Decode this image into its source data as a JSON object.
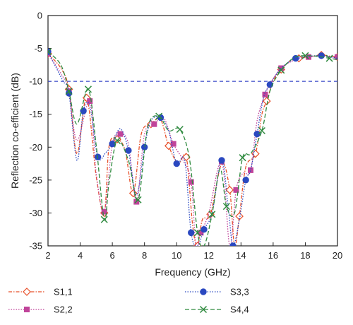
{
  "chart_data": {
    "type": "line",
    "title": "",
    "xlabel": "Frequency (GHz)",
    "ylabel": "Reflection co-efficient (dB)",
    "xlim": [
      2,
      20
    ],
    "ylim": [
      -35,
      0
    ],
    "xticks": [
      2,
      4,
      6,
      8,
      10,
      12,
      14,
      16,
      18,
      20
    ],
    "yticks": [
      0,
      -5,
      -10,
      -15,
      -20,
      -25,
      -30,
      -35
    ],
    "grid": false,
    "legend_position": "below-plot",
    "reference_line": {
      "y": -10,
      "color": "#3a48c8",
      "style": "dashed"
    },
    "series": [
      {
        "name": "S1,1",
        "color": "#e8502a",
        "marker": "diamond-open",
        "line_style": "dash-dot",
        "x": [
          2,
          2.8,
          3.3,
          3.8,
          4.4,
          5.0,
          5.5,
          5.8,
          6.3,
          6.8,
          7.3,
          7.8,
          8.4,
          9.0,
          9.5,
          10.1,
          10.6,
          11.0,
          11.3,
          11.6,
          12.1,
          12.8,
          13.3,
          13.6,
          13.9,
          14.3,
          14.9,
          15.3,
          15.6,
          16.0,
          16.5,
          17.0,
          17.6,
          18.4,
          19.0,
          19.6,
          20
        ],
        "y": [
          -5.8,
          -8.0,
          -11.2,
          -21.0,
          -12.5,
          -24.5,
          -30.0,
          -19.8,
          -18.8,
          -20.5,
          -27.0,
          -18.0,
          -16.5,
          -15.8,
          -19.8,
          -22.5,
          -21.5,
          -32.0,
          -35.0,
          -31.0,
          -30.2,
          -22.5,
          -26.5,
          -35.0,
          -30.5,
          -23.0,
          -21.0,
          -15.0,
          -13.0,
          -10.0,
          -8.2,
          -7.0,
          -6.5,
          -6.2,
          -6.0,
          -6.2,
          -6.3
        ]
      },
      {
        "name": "S2,2",
        "color": "#c0449a",
        "marker": "square",
        "line_style": "dotted",
        "x": [
          2,
          2.9,
          3.3,
          3.8,
          4.6,
          5.0,
          5.5,
          6.0,
          6.5,
          7.0,
          7.5,
          8.0,
          8.6,
          9.2,
          9.8,
          10.4,
          10.9,
          11.2,
          11.5,
          12.0,
          12.8,
          13.3,
          13.7,
          14.1,
          14.6,
          15.0,
          15.5,
          15.9,
          16.5,
          17.3,
          18.2,
          19.0,
          20
        ],
        "y": [
          -5.8,
          -9.2,
          -11.5,
          -19.0,
          -13.0,
          -24.0,
          -29.8,
          -19.5,
          -18.0,
          -19.5,
          -28.3,
          -18.0,
          -16.5,
          -15.6,
          -19.5,
          -22.0,
          -25.3,
          -35.0,
          -33.0,
          -30.0,
          -22.2,
          -35.0,
          -26.5,
          -24.0,
          -23.5,
          -16.0,
          -12.0,
          -10.0,
          -8.0,
          -6.8,
          -6.3,
          -6.2,
          -6.3
        ]
      },
      {
        "name": "S3,3",
        "color": "#2a48c0",
        "marker": "circle",
        "line_style": "dotted",
        "x": [
          2,
          2.9,
          3.3,
          3.8,
          4.2,
          4.6,
          5.1,
          5.6,
          6.0,
          6.5,
          7.0,
          7.5,
          8.0,
          8.4,
          9.0,
          9.5,
          10.0,
          10.5,
          10.9,
          11.3,
          11.7,
          12.2,
          12.8,
          13.2,
          13.5,
          13.9,
          14.3,
          14.6,
          15.0,
          15.4,
          15.8,
          16.5,
          17.4,
          18.2,
          19.0,
          20
        ],
        "y": [
          -5.5,
          -9.8,
          -11.8,
          -22.0,
          -14.5,
          -13.8,
          -21.5,
          -20.8,
          -19.5,
          -17.2,
          -20.5,
          -27.3,
          -20.0,
          -16.0,
          -15.5,
          -17.5,
          -22.5,
          -22.0,
          -33.0,
          -35.0,
          -32.5,
          -30.0,
          -22.0,
          -29.0,
          -35.0,
          -31.0,
          -25.0,
          -23.5,
          -18.0,
          -12.5,
          -10.5,
          -8.0,
          -6.5,
          -6.2,
          -6.1,
          -6.5
        ]
      },
      {
        "name": "S4,4",
        "color": "#2f8a3f",
        "marker": "x",
        "line_style": "dash",
        "x": [
          2,
          2.8,
          3.3,
          3.8,
          4.5,
          5.0,
          5.5,
          5.8,
          6.3,
          7.0,
          7.6,
          8.2,
          8.9,
          9.5,
          10.2,
          10.8,
          11.3,
          11.7,
          12.2,
          12.7,
          13.1,
          13.6,
          14.1,
          14.6,
          15.3,
          15.8,
          16.5,
          17.3,
          18.0,
          18.8,
          19.5,
          20
        ],
        "y": [
          -5.5,
          -7.5,
          -11.5,
          -16.5,
          -11.2,
          -19.8,
          -31.0,
          -25.3,
          -19.0,
          -22.0,
          -28.0,
          -17.0,
          -15.3,
          -17.5,
          -17.3,
          -21.8,
          -33.0,
          -35.0,
          -30.2,
          -23.3,
          -29.0,
          -30.0,
          -21.6,
          -21.0,
          -17.5,
          -11.5,
          -8.3,
          -6.4,
          -6.1,
          -6.2,
          -6.5,
          -6.7
        ]
      }
    ]
  }
}
